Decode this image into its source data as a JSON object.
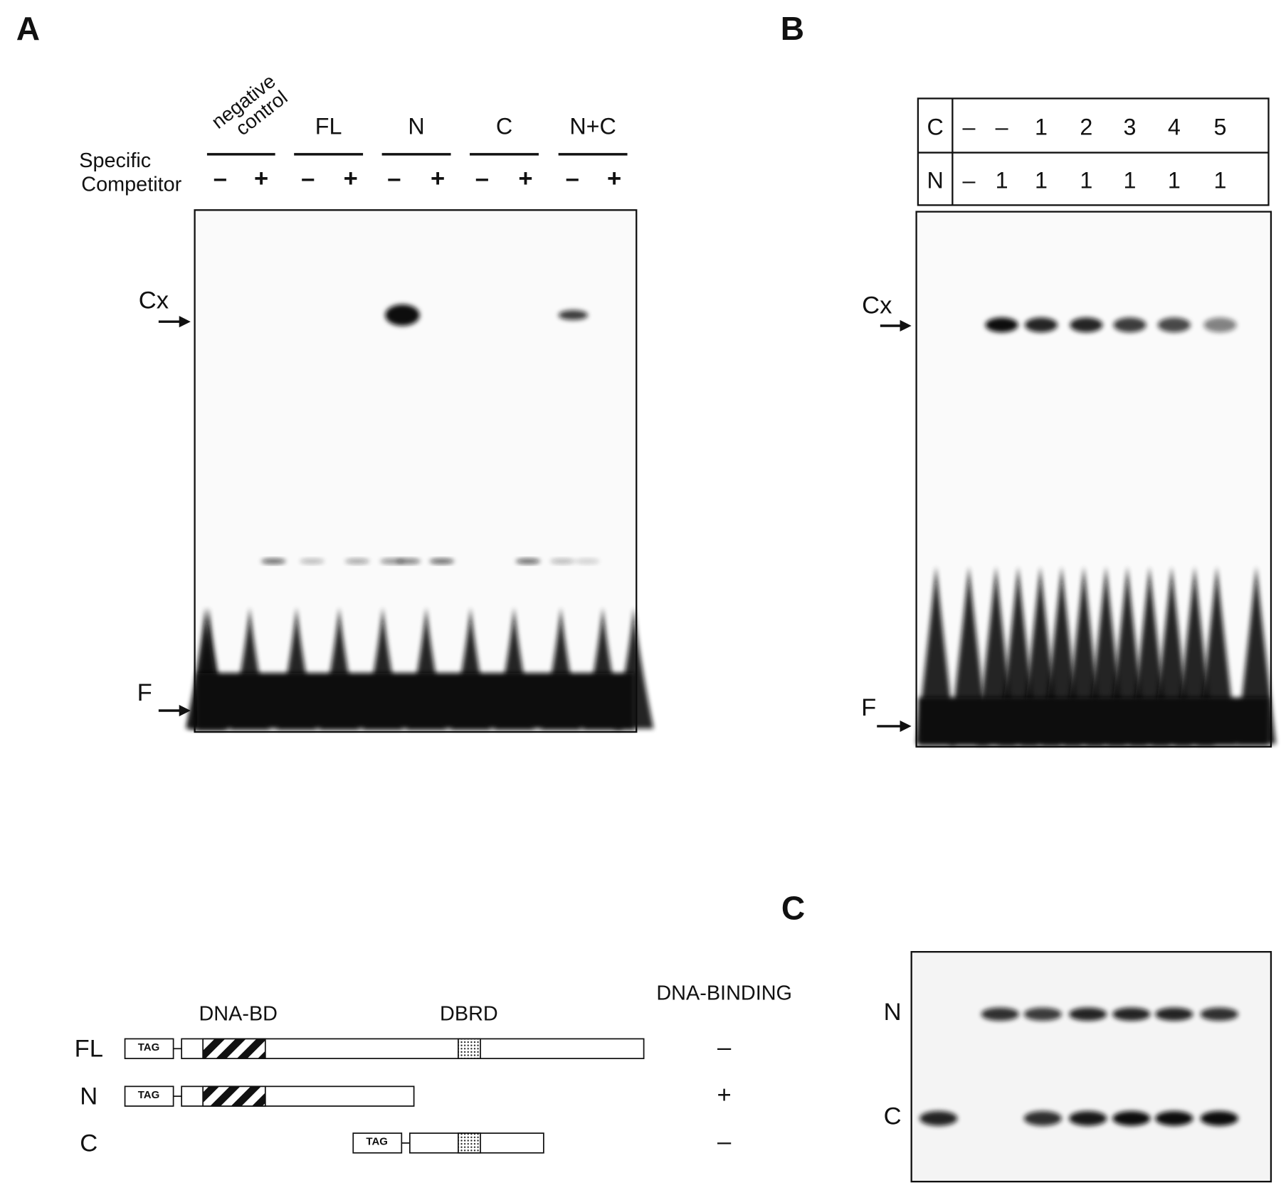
{
  "panel_a": {
    "label": "A",
    "groups": [
      [
        "negative",
        "control"
      ],
      [
        "FL"
      ],
      [
        "N"
      ],
      [
        "C"
      ],
      [
        "N+C"
      ]
    ],
    "competitor_label": [
      "Specific",
      "Competitor"
    ],
    "lanes": [
      "–",
      "+",
      "–",
      "+",
      "–",
      "+",
      "–",
      "+",
      "–",
      "+"
    ],
    "bands": [
      "Cx",
      "F"
    ]
  },
  "panel_b": {
    "label": "B",
    "rows": [
      [
        "C",
        "–",
        "–",
        "1",
        "2",
        "3",
        "4",
        "5"
      ],
      [
        "N",
        "–",
        "1",
        "1",
        "1",
        "1",
        "1",
        "1"
      ]
    ],
    "bands": [
      "Cx",
      "F"
    ]
  },
  "panel_c": {
    "label": "C",
    "bands": [
      "N",
      "C"
    ]
  },
  "diagram": {
    "header": "DNA-BINDING",
    "domains": [
      "DNA-BD",
      "DBRD"
    ],
    "constructs": [
      {
        "name": "FL",
        "tag": "TAG",
        "binding": "–"
      },
      {
        "name": "N",
        "tag": "TAG",
        "binding": "+"
      },
      {
        "name": "C",
        "tag": "TAG",
        "binding": "–"
      }
    ]
  }
}
